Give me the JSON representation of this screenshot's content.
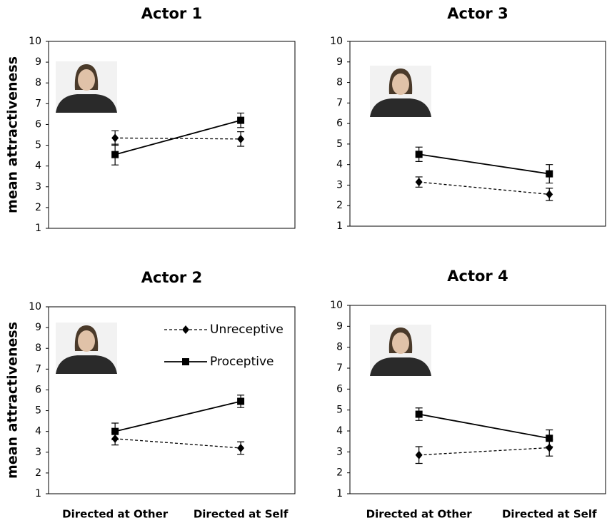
{
  "chart_data": [
    {
      "type": "line",
      "title": "Actor 1",
      "ylabel": "mean attractiveness",
      "categories": [
        null,
        null
      ],
      "ylim": [
        1,
        10
      ],
      "yticks": [
        1,
        2,
        3,
        4,
        5,
        6,
        7,
        8,
        9,
        10
      ],
      "series": [
        {
          "color": "#000000",
          "line_style": "dashed",
          "marker": "diamond",
          "values": [
            5.35,
            5.3
          ],
          "errors": [
            0.35,
            0.35
          ]
        },
        {
          "color": "#000000",
          "line_style": "solid",
          "marker": "square",
          "values": [
            4.55,
            6.2
          ],
          "errors": [
            0.5,
            0.35
          ]
        }
      ]
    },
    {
      "type": "line",
      "title": "Actor 3",
      "categories": [
        null,
        null
      ],
      "ylim": [
        1,
        10
      ],
      "yticks": [
        1,
        2,
        3,
        4,
        5,
        6,
        7,
        8,
        9,
        10
      ],
      "series": [
        {
          "color": "#000000",
          "line_style": "dashed",
          "marker": "diamond",
          "values": [
            3.15,
            2.55
          ],
          "errors": [
            0.25,
            0.3
          ]
        },
        {
          "color": "#000000",
          "line_style": "solid",
          "marker": "square",
          "values": [
            4.5,
            3.55
          ],
          "errors": [
            0.35,
            0.45
          ]
        }
      ]
    },
    {
      "type": "line",
      "title": "Actor 2",
      "ylabel": "mean attractiveness",
      "categories": [
        "Directed at Other",
        "Directed at Self"
      ],
      "ylim": [
        1,
        10
      ],
      "yticks": [
        1,
        2,
        3,
        4,
        5,
        6,
        7,
        8,
        9,
        10
      ],
      "legend": true,
      "series": [
        {
          "name": "Unreceptive",
          "color": "#000000",
          "line_style": "dashed",
          "marker": "diamond",
          "values": [
            3.65,
            3.2
          ],
          "errors": [
            0.3,
            0.3
          ]
        },
        {
          "name": "Proceptive",
          "color": "#000000",
          "line_style": "solid",
          "marker": "square",
          "values": [
            4.0,
            5.45
          ],
          "errors": [
            0.4,
            0.3
          ]
        }
      ]
    },
    {
      "type": "line",
      "title": "Actor 4",
      "categories": [
        "Directed at Other",
        "Directed at Self"
      ],
      "ylim": [
        1,
        10
      ],
      "yticks": [
        1,
        2,
        3,
        4,
        5,
        6,
        7,
        8,
        9,
        10
      ],
      "series": [
        {
          "color": "#000000",
          "line_style": "dashed",
          "marker": "diamond",
          "values": [
            2.85,
            3.2
          ],
          "errors": [
            0.4,
            0.4
          ]
        },
        {
          "color": "#000000",
          "line_style": "solid",
          "marker": "square",
          "values": [
            4.8,
            3.65
          ],
          "errors": [
            0.3,
            0.4
          ]
        }
      ]
    }
  ]
}
